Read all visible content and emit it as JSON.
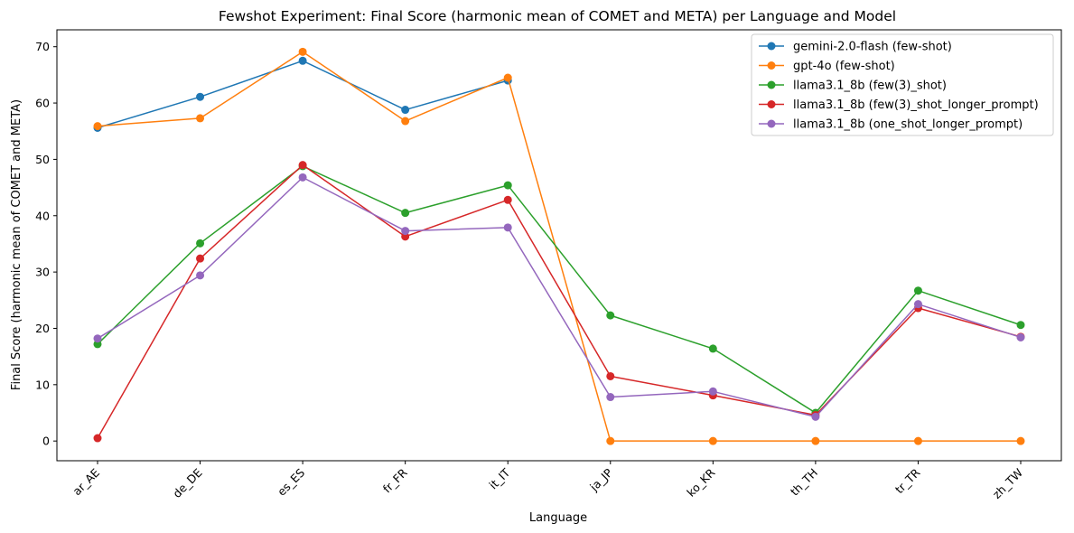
{
  "chart_data": {
    "type": "line",
    "title": "Fewshot Experiment: Final Score (harmonic mean of COMET and META) per Language and Model",
    "xlabel": "Language",
    "ylabel": "Final Score (harmonic mean of COMET and META)",
    "categories": [
      "ar_AE",
      "de_DE",
      "es_ES",
      "fr_FR",
      "it_IT",
      "ja_JP",
      "ko_KR",
      "th_TH",
      "tr_TR",
      "zh_TW"
    ],
    "ylim": [
      -3.5,
      73
    ],
    "yticks": [
      0,
      10,
      20,
      30,
      40,
      50,
      60,
      70
    ],
    "grid": false,
    "legend_position": "top-right",
    "series": [
      {
        "name": "gemini-2.0-flash (few-shot)",
        "color": "#1f77b4",
        "values": [
          55.6,
          61.1,
          67.5,
          58.8,
          64.0,
          null,
          null,
          null,
          null,
          null
        ]
      },
      {
        "name": "gpt-4o (few-shot)",
        "color": "#ff7f0e",
        "values": [
          55.9,
          57.3,
          69.1,
          56.8,
          64.5,
          0,
          0,
          0,
          0,
          0
        ]
      },
      {
        "name": "llama3.1_8b (few(3)_shot)",
        "color": "#2ca02c",
        "values": [
          17.2,
          35.1,
          48.8,
          40.5,
          45.4,
          22.3,
          16.4,
          5.0,
          26.7,
          20.6
        ]
      },
      {
        "name": "llama3.1_8b (few(3)_shot_longer_prompt)",
        "color": "#d62728",
        "values": [
          0.5,
          32.4,
          49.0,
          36.3,
          42.8,
          11.5,
          8.1,
          4.6,
          23.6,
          18.5
        ]
      },
      {
        "name": "llama3.1_8b (one_shot_longer_prompt)",
        "color": "#9467bd",
        "values": [
          18.2,
          29.4,
          46.8,
          37.3,
          37.9,
          7.8,
          8.8,
          4.3,
          24.3,
          18.4
        ]
      }
    ]
  }
}
